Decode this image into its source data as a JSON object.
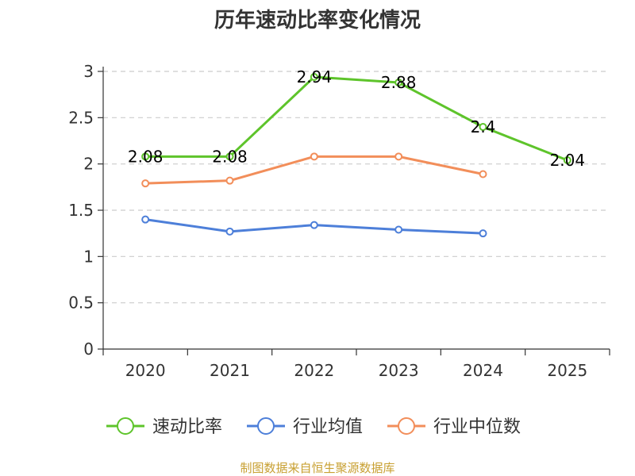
{
  "chart_data": {
    "type": "line",
    "title": "历年速动比率变化情况",
    "categories": [
      "2020",
      "2021",
      "2022",
      "2023",
      "2024",
      "2025"
    ],
    "ylim": [
      0,
      3
    ],
    "yticks": [
      "0",
      "0.5",
      "1",
      "1.5",
      "2",
      "2.5",
      "3"
    ],
    "grid": true,
    "legend_position": "bottom",
    "series": [
      {
        "name": "速动比率",
        "color": "#5ec42b",
        "values": [
          2.08,
          2.08,
          2.94,
          2.88,
          2.4,
          2.04
        ],
        "labels": [
          "2.08",
          "2.08",
          "2.94",
          "2.88",
          "2.4",
          "2.04"
        ]
      },
      {
        "name": "行业均值",
        "color": "#4d7fd9",
        "values": [
          1.4,
          1.27,
          1.34,
          1.29,
          1.25,
          null
        ]
      },
      {
        "name": "行业中位数",
        "color": "#f28e5a",
        "values": [
          1.79,
          1.82,
          2.08,
          2.08,
          1.89,
          null
        ]
      }
    ]
  },
  "footer": {
    "source": "制图数据来自恒生聚源数据库"
  }
}
